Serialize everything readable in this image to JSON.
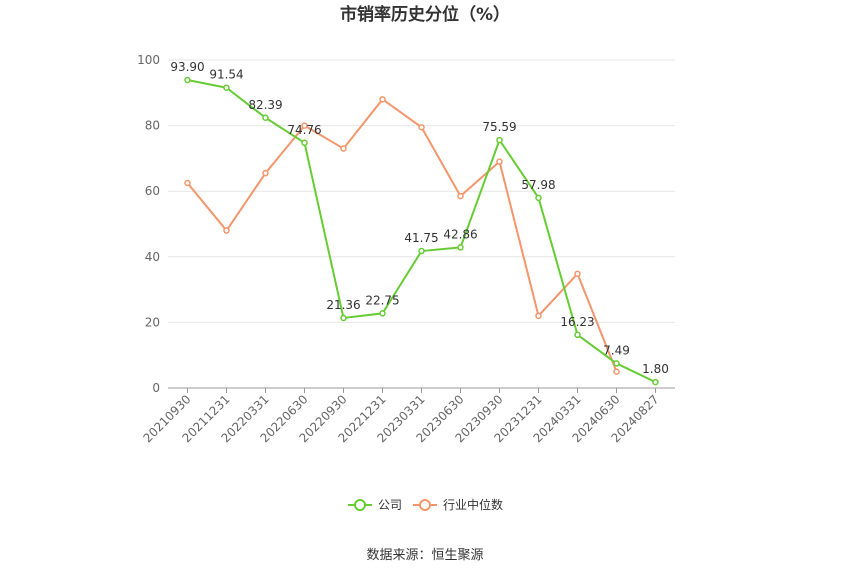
{
  "chart_data": {
    "type": "line",
    "title": "市销率历史分位（%）",
    "categories": [
      "20210930",
      "20211231",
      "20220331",
      "20220630",
      "20220930",
      "20221231",
      "20230331",
      "20230630",
      "20230930",
      "20231231",
      "20240331",
      "20240630",
      "20240827"
    ],
    "ylim": [
      0,
      100
    ],
    "yticks": [
      0,
      20,
      40,
      60,
      80,
      100
    ],
    "grid": true,
    "legend_position": "bottom",
    "series": [
      {
        "name": "公司",
        "color": "#66cc33",
        "values": [
          93.9,
          91.54,
          82.39,
          74.76,
          21.36,
          22.75,
          41.75,
          42.86,
          75.59,
          57.98,
          16.23,
          7.49,
          1.8
        ],
        "labels": [
          "93.90",
          "91.54",
          "82.39",
          "74.76",
          "21.36",
          "22.75",
          "41.75",
          "42.86",
          "75.59",
          "57.98",
          "16.23",
          "7.49",
          "1.80"
        ]
      },
      {
        "name": "行业中位数",
        "color": "#f4956b",
        "values": [
          62.5,
          48.0,
          65.5,
          80.0,
          73.0,
          88.0,
          79.5,
          58.5,
          69.0,
          22.0,
          34.8,
          5.0,
          null
        ]
      }
    ]
  },
  "source_text": "数据来源：恒生聚源"
}
